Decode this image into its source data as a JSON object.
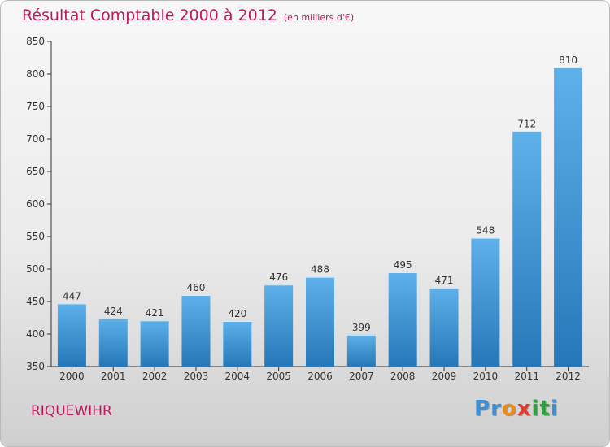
{
  "title": "Résultat Comptable 2000 à 2012",
  "subtitle": "(en milliers d'€)",
  "location": "RIQUEWIHR",
  "brand": {
    "letters": [
      "P",
      "r",
      "o",
      "x",
      "i",
      "t",
      "i"
    ],
    "colors": [
      "#3a8fd6",
      "#3a8fd6",
      "#e8891a",
      "#e23b2a",
      "#2f9f3e",
      "#2f9f3e",
      "#3a8fd6"
    ]
  },
  "colors": {
    "title": "#c2185b",
    "bar_top": "#5eb1ea",
    "bar_bottom": "#2677b8",
    "axis": "#333333"
  },
  "chart_data": {
    "type": "bar",
    "categories": [
      "2000",
      "2001",
      "2002",
      "2003",
      "2004",
      "2005",
      "2006",
      "2007",
      "2008",
      "2009",
      "2010",
      "2011",
      "2012"
    ],
    "values": [
      447,
      424,
      421,
      460,
      420,
      476,
      488,
      399,
      495,
      471,
      548,
      712,
      810
    ],
    "ylim": [
      350,
      850
    ],
    "yticks": [
      350,
      400,
      450,
      500,
      550,
      600,
      650,
      700,
      750,
      800,
      850
    ],
    "grid": false,
    "data_labels": true
  }
}
